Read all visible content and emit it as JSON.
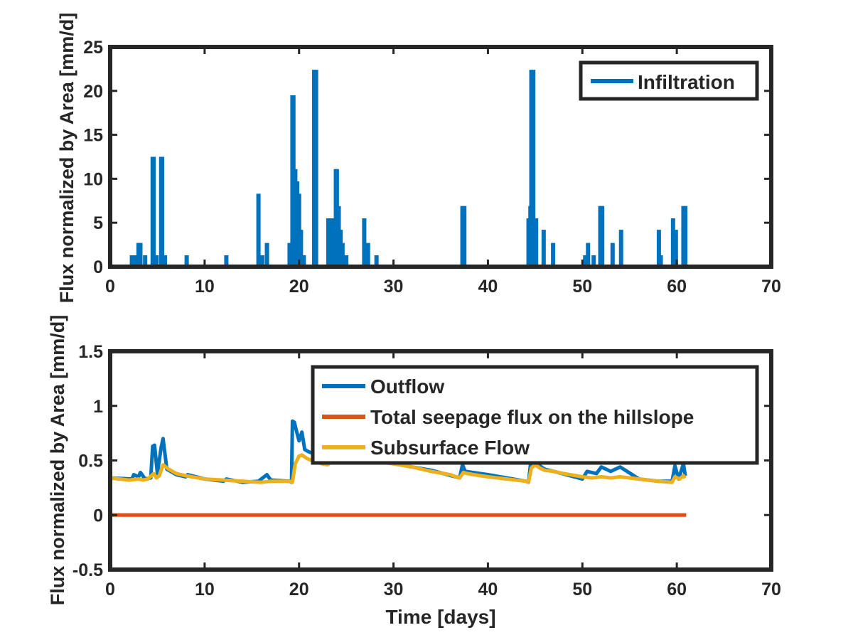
{
  "chart_data": [
    {
      "type": "line",
      "title": "",
      "xlabel": "",
      "ylabel": "Flux normalized by Area [mm/d]",
      "xlim": [
        0,
        70
      ],
      "ylim": [
        0,
        25
      ],
      "xticks": [
        "0",
        "10",
        "20",
        "30",
        "40",
        "50",
        "60",
        "70"
      ],
      "yticks": [
        "0",
        "5",
        "10",
        "15",
        "20",
        "25"
      ],
      "grid": false,
      "legend_position": "top-right",
      "series": [
        {
          "name": "Infiltration",
          "color": "#0072BD",
          "style": "spikes",
          "x": [
            2.3,
            2.7,
            3.0,
            3.2,
            3.7,
            4.5,
            4.6,
            4.9,
            5.4,
            5.5,
            5.8,
            8.1,
            12.3,
            15.7,
            16.1,
            16.6,
            19.0,
            19.3,
            19.4,
            19.6,
            19.8,
            20.0,
            20.2,
            20.5,
            21.6,
            21.8,
            23.1,
            23.4,
            23.6,
            23.9,
            24.0,
            24.2,
            24.4,
            24.6,
            25.0,
            26.9,
            27.3,
            28.2,
            37.3,
            37.5,
            44.3,
            44.5,
            44.6,
            44.8,
            45.1,
            45.9,
            46.9,
            50.3,
            50.6,
            51.2,
            51.9,
            52.1,
            53.2,
            54.1,
            58.1,
            58.3,
            59.6,
            59.9,
            60.7,
            60.9
          ],
          "y": [
            1.3,
            1.3,
            2.7,
            2.7,
            1.3,
            12.5,
            12.5,
            1.3,
            12.5,
            12.5,
            1.3,
            1.3,
            1.3,
            8.3,
            1.3,
            2.7,
            2.7,
            19.5,
            19.5,
            11.1,
            9.7,
            8.3,
            4.2,
            1.3,
            22.4,
            22.4,
            5.5,
            5.5,
            5.5,
            11.1,
            11.1,
            6.9,
            4.2,
            2.7,
            1.3,
            5.5,
            2.7,
            1.3,
            6.9,
            6.9,
            5.5,
            6.9,
            22.4,
            22.4,
            5.5,
            4.2,
            2.7,
            1.3,
            2.7,
            1.3,
            6.9,
            6.9,
            2.7,
            4.2,
            4.2,
            1.3,
            5.5,
            4.2,
            6.9,
            6.9
          ],
          "x_end": 61
        }
      ]
    },
    {
      "type": "line",
      "title": "",
      "xlabel": "Time [days]",
      "ylabel": "Flux normalized by Area [mm/d]",
      "xlim": [
        0,
        70
      ],
      "ylim": [
        -0.5,
        1.5
      ],
      "xticks": [
        "0",
        "10",
        "20",
        "30",
        "40",
        "50",
        "60",
        "70"
      ],
      "yticks": [
        "-0.5",
        "0",
        "0.5",
        "1",
        "1.5"
      ],
      "grid": false,
      "legend_position": "top-right",
      "series": [
        {
          "name": "Outflow",
          "color": "#0072BD",
          "x": [
            0,
            2.3,
            2.5,
            3.0,
            3.2,
            3.7,
            4.3,
            4.5,
            4.7,
            5.0,
            5.4,
            5.6,
            6.0,
            7.0,
            8.0,
            8.2,
            10,
            12,
            12.3,
            14,
            15.7,
            16.0,
            16.6,
            17.0,
            19.0,
            19.2,
            19.3,
            19.5,
            19.7,
            20.0,
            20.3,
            20.6,
            21.0,
            21.6,
            22.0,
            22.5,
            23.0,
            23.5,
            24.0,
            24.3,
            25.0,
            27.0,
            30,
            34,
            37.0,
            37.3,
            37.6,
            40,
            44.0,
            44.3,
            44.5,
            44.7,
            45.0,
            46.0,
            47,
            50.0,
            50.5,
            51.5,
            52.0,
            53.0,
            54.0,
            56,
            58.0,
            59.5,
            59.8,
            60.2,
            60.7,
            60.9
          ],
          "y": [
            0.34,
            0.33,
            0.37,
            0.35,
            0.39,
            0.33,
            0.34,
            0.63,
            0.64,
            0.38,
            0.62,
            0.7,
            0.42,
            0.37,
            0.35,
            0.37,
            0.33,
            0.31,
            0.33,
            0.3,
            0.31,
            0.33,
            0.37,
            0.32,
            0.31,
            0.3,
            0.86,
            0.85,
            0.78,
            0.68,
            0.76,
            0.6,
            0.58,
            0.56,
            0.54,
            0.52,
            0.48,
            0.52,
            0.55,
            0.6,
            0.5,
            0.51,
            0.47,
            0.41,
            0.34,
            0.46,
            0.4,
            0.37,
            0.31,
            0.3,
            0.46,
            0.5,
            0.48,
            0.42,
            0.4,
            0.33,
            0.4,
            0.38,
            0.44,
            0.4,
            0.44,
            0.33,
            0.31,
            0.31,
            0.45,
            0.33,
            0.47,
            0.36
          ]
        },
        {
          "name": "Total seepage flux on the hillslope",
          "color": "#D95319",
          "x": [
            0,
            61
          ],
          "y": [
            0,
            0
          ]
        },
        {
          "name": "Subsurface Flow",
          "color": "#EDB120",
          "x": [
            0,
            2,
            3,
            3.5,
            4.0,
            4.6,
            4.9,
            5.2,
            5.6,
            6.2,
            7,
            8,
            10,
            12,
            14,
            16,
            17,
            18,
            19.0,
            19.3,
            19.6,
            20.0,
            20.3,
            20.8,
            21.3,
            21.8,
            22.4,
            23.0,
            23.5,
            24.0,
            25.0,
            26,
            27,
            28,
            30,
            32,
            34,
            36,
            37.0,
            37.4,
            37.8,
            38.5,
            40,
            42,
            44.0,
            44.3,
            44.6,
            45.0,
            45.5,
            46,
            47,
            48,
            50,
            51,
            52,
            53,
            54,
            56,
            58,
            59.5,
            59.8,
            60.3,
            60.7,
            60.9
          ],
          "y": [
            0.34,
            0.32,
            0.33,
            0.32,
            0.33,
            0.38,
            0.34,
            0.36,
            0.46,
            0.42,
            0.38,
            0.36,
            0.33,
            0.32,
            0.31,
            0.3,
            0.31,
            0.31,
            0.31,
            0.3,
            0.47,
            0.54,
            0.55,
            0.52,
            0.5,
            0.49,
            0.47,
            0.46,
            0.49,
            0.51,
            0.5,
            0.5,
            0.5,
            0.49,
            0.47,
            0.44,
            0.4,
            0.37,
            0.34,
            0.39,
            0.38,
            0.37,
            0.35,
            0.33,
            0.31,
            0.3,
            0.43,
            0.46,
            0.43,
            0.41,
            0.4,
            0.38,
            0.35,
            0.34,
            0.35,
            0.34,
            0.35,
            0.33,
            0.31,
            0.3,
            0.35,
            0.33,
            0.36,
            0.34
          ]
        }
      ]
    }
  ]
}
